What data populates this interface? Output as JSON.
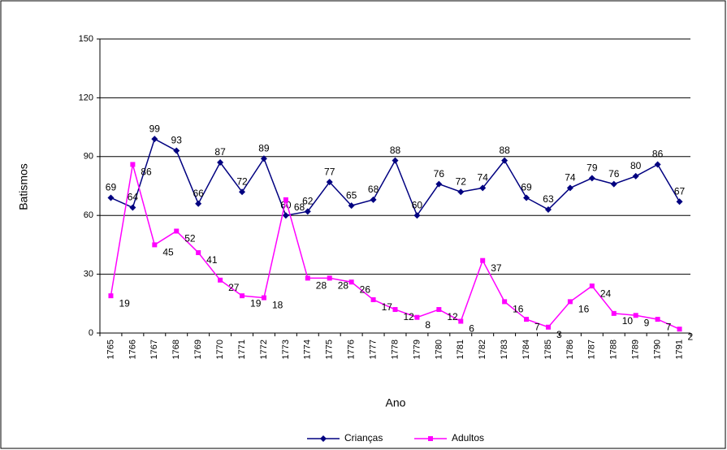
{
  "chart_data": {
    "type": "line",
    "xlabel": "Ano",
    "ylabel": "Batismos",
    "categories": [
      "1765",
      "1766",
      "1767",
      "1768",
      "1769",
      "1770",
      "1771",
      "1772",
      "1773",
      "1774",
      "1775",
      "1776",
      "1777",
      "1778",
      "1779",
      "1780",
      "1781",
      "1782",
      "1783",
      "1784",
      "1785",
      "1786",
      "1787",
      "1788",
      "1789",
      "1790",
      "1791"
    ],
    "series": [
      {
        "name": "Crianças",
        "color": "#000080",
        "marker": "diamond",
        "values": [
          69,
          64,
          99,
          93,
          66,
          87,
          72,
          89,
          60,
          62,
          77,
          65,
          68,
          88,
          60,
          76,
          72,
          74,
          88,
          69,
          63,
          74,
          79,
          76,
          80,
          86,
          67
        ]
      },
      {
        "name": "Adultos",
        "color": "#ff00ff",
        "marker": "square",
        "values": [
          19,
          86,
          45,
          52,
          41,
          27,
          19,
          18,
          68,
          28,
          28,
          26,
          17,
          12,
          8,
          12,
          6,
          37,
          16,
          7,
          3,
          16,
          24,
          10,
          9,
          7,
          2
        ]
      }
    ],
    "ylim": [
      0,
      150
    ],
    "yticks": [
      0,
      30,
      60,
      90,
      120,
      150
    ],
    "grid": true,
    "legend": "bottom"
  }
}
